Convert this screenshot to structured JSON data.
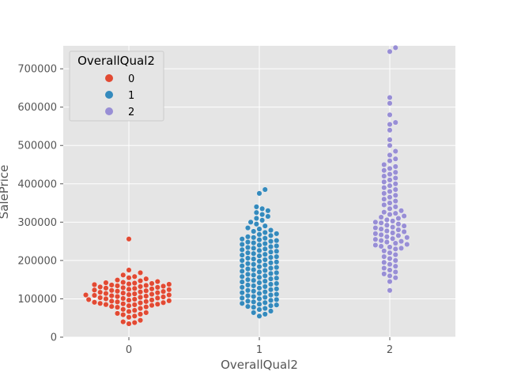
{
  "chart_data": {
    "type": "scatter",
    "subtype": "swarm",
    "title": "",
    "xlabel": "OverallQual2",
    "ylabel": "SalePrice",
    "categories": [
      "0",
      "1",
      "2"
    ],
    "ylim": [
      0,
      760000
    ],
    "yticks": [
      0,
      100000,
      200000,
      300000,
      400000,
      500000,
      600000,
      700000
    ],
    "ytick_labels": [
      "0",
      "100000",
      "200000",
      "300000",
      "400000",
      "500000",
      "600000",
      "700000"
    ],
    "grid": true,
    "background": "#e5e5e5",
    "legend": {
      "title": "OverallQual2",
      "placement": "top-left",
      "entries": [
        "0",
        "1",
        "2"
      ]
    },
    "colors": [
      "#e24a33",
      "#348abd",
      "#988ed5"
    ],
    "series": [
      {
        "category": "0",
        "values": [
          35000,
          37900,
          40000,
          44000,
          52000,
          55000,
          58500,
          60000,
          62000,
          64000,
          67000,
          70000,
          72500,
          75000,
          78000,
          79000,
          80000,
          82000,
          83000,
          84500,
          85000,
          86000,
          87000,
          88000,
          89500,
          90000,
          91000,
          92000,
          93000,
          94000,
          95000,
          96500,
          97000,
          98000,
          99000,
          100000,
          101000,
          102000,
          103000,
          104000,
          105000,
          106000,
          107000,
          108000,
          109000,
          110000,
          110000,
          111000,
          112000,
          113000,
          114000,
          115000,
          116000,
          117000,
          118000,
          119000,
          120000,
          121000,
          122000,
          123000,
          124000,
          125000,
          126000,
          127000,
          128000,
          129000,
          130000,
          131000,
          132000,
          133000,
          134000,
          135000,
          136000,
          137000,
          138000,
          139000,
          140000,
          141000,
          142000,
          143000,
          145000,
          147000,
          149000,
          152000,
          155000,
          158000,
          162000,
          168000,
          175000,
          256000
        ]
      },
      {
        "category": "1",
        "values": [
          55000,
          60000,
          64000,
          68000,
          72000,
          75000,
          78000,
          80000,
          82000,
          84000,
          86000,
          88000,
          90000,
          92000,
          94000,
          96000,
          98000,
          100000,
          102000,
          104000,
          106000,
          108000,
          110000,
          112000,
          114000,
          116000,
          118000,
          120000,
          122000,
          124000,
          126000,
          128000,
          130000,
          132000,
          134000,
          136000,
          138000,
          140000,
          142000,
          144000,
          146000,
          148000,
          150000,
          152000,
          154000,
          156000,
          158000,
          160000,
          162000,
          164000,
          166000,
          168000,
          170000,
          172000,
          174000,
          176000,
          178000,
          180000,
          182000,
          184000,
          186000,
          188000,
          190000,
          192000,
          194000,
          196000,
          198000,
          200000,
          202000,
          204000,
          206000,
          208000,
          210000,
          212000,
          214000,
          216000,
          218000,
          220000,
          222000,
          224000,
          226000,
          228000,
          230000,
          232000,
          234000,
          236000,
          238000,
          240000,
          242000,
          244000,
          246000,
          248000,
          250000,
          252000,
          254000,
          256000,
          258000,
          260000,
          262000,
          265000,
          268000,
          270000,
          273000,
          276000,
          279000,
          282000,
          285000,
          290000,
          295000,
          300000,
          305000,
          310000,
          315000,
          320000,
          325000,
          330000,
          335000,
          340000,
          375000,
          385000
        ]
      },
      {
        "category": "2",
        "values": [
          122000,
          145000,
          155000,
          160000,
          165000,
          170000,
          175000,
          180000,
          185000,
          190000,
          195000,
          200000,
          205000,
          210000,
          215000,
          220000,
          225000,
          230000,
          232000,
          235000,
          237000,
          240000,
          242000,
          245000,
          248000,
          250000,
          252000,
          255000,
          257000,
          260000,
          262000,
          265000,
          267000,
          270000,
          272000,
          275000,
          277000,
          280000,
          282000,
          285000,
          287000,
          290000,
          292000,
          295000,
          298000,
          300000,
          303000,
          306000,
          310000,
          313000,
          316000,
          320000,
          323000,
          326000,
          330000,
          335000,
          340000,
          345000,
          350000,
          355000,
          360000,
          365000,
          370000,
          375000,
          380000,
          385000,
          390000,
          395000,
          400000,
          405000,
          410000,
          415000,
          420000,
          425000,
          430000,
          435000,
          440000,
          445000,
          450000,
          460000,
          465000,
          475000,
          485000,
          500000,
          515000,
          540000,
          555000,
          560000,
          580000,
          610000,
          625000,
          745000,
          755000
        ]
      }
    ]
  }
}
